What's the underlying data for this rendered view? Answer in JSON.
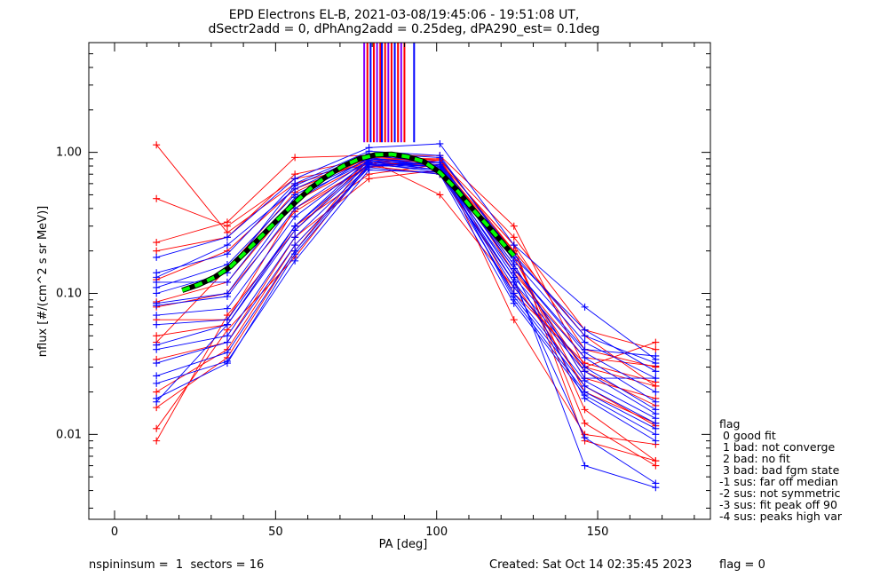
{
  "chart_data": {
    "type": "line",
    "title_line1": "EPD Electrons EL-B, 2021-03-08/19:45:06 - 19:51:08 UT,",
    "title_line2": "dSectr2add = 0, dPhAng2add = 0.25deg, dPA290_est=   0.1deg",
    "xlabel": "PA [deg]",
    "ylabel": "nflux [#/(cm^2 s sr MeV)]",
    "xlim": [
      -8,
      185
    ],
    "ylim": [
      0.0025,
      6.0
    ],
    "yscale": "log",
    "x_ticks": [
      0,
      50,
      100,
      150
    ],
    "x_tick_labels": [
      "0",
      "50",
      "100",
      "150"
    ],
    "y_ticks": [
      0.01,
      0.1,
      1.0
    ],
    "y_tick_labels": [
      "0.01",
      "0.10",
      "1.00"
    ],
    "pa_bins": [
      13,
      35,
      56,
      79,
      101,
      124,
      146,
      168
    ],
    "colors": {
      "red": "#ff0000",
      "blue": "#0000ff",
      "purple": "#8000ff",
      "green": "#00ff00",
      "black": "#000000"
    },
    "series": [
      {
        "color": "red",
        "values": [
          1.13,
          0.27,
          0.6,
          0.85,
          0.9,
          0.2,
          0.05,
          0.022
        ]
      },
      {
        "color": "red",
        "values": [
          0.47,
          0.3,
          0.65,
          0.82,
          0.85,
          0.22,
          0.04,
          0.03
        ]
      },
      {
        "color": "red",
        "values": [
          0.23,
          0.32,
          0.92,
          0.95,
          0.95,
          0.3,
          0.03,
          0.045
        ]
      },
      {
        "color": "red",
        "values": [
          0.2,
          0.25,
          0.7,
          0.9,
          0.88,
          0.25,
          0.055,
          0.04
        ]
      },
      {
        "color": "red",
        "values": [
          0.125,
          0.2,
          0.55,
          0.88,
          0.5,
          0.11,
          0.03,
          0.022
        ]
      },
      {
        "color": "red",
        "values": [
          0.087,
          0.12,
          0.45,
          0.85,
          0.8,
          0.16,
          0.025,
          0.018
        ]
      },
      {
        "color": "red",
        "values": [
          0.065,
          0.065,
          0.4,
          0.8,
          0.85,
          0.18,
          0.02,
          0.012
        ]
      },
      {
        "color": "red",
        "values": [
          0.05,
          0.06,
          0.3,
          0.7,
          0.82,
          0.2,
          0.015,
          0.0065
        ]
      },
      {
        "color": "red",
        "values": [
          0.034,
          0.045,
          0.25,
          0.65,
          0.75,
          0.2,
          0.012,
          0.006
        ]
      },
      {
        "color": "red",
        "values": [
          0.02,
          0.04,
          0.22,
          0.78,
          0.88,
          0.065,
          0.01,
          0.0085
        ]
      },
      {
        "color": "red",
        "values": [
          0.0155,
          0.035,
          0.2,
          0.9,
          0.9,
          0.1,
          0.032,
          0.0235
        ]
      },
      {
        "color": "red",
        "values": [
          0.011,
          0.055,
          0.18,
          0.85,
          0.8,
          0.15,
          0.028,
          0.016
        ]
      },
      {
        "color": "red",
        "values": [
          0.009,
          0.07,
          0.28,
          0.88,
          0.85,
          0.22,
          0.009,
          0.0065
        ]
      },
      {
        "color": "red",
        "values": [
          0.08,
          0.1,
          0.38,
          0.8,
          0.7,
          0.12,
          0.022,
          0.0115
        ]
      },
      {
        "color": "red",
        "values": [
          0.045,
          0.15,
          0.52,
          0.92,
          0.9,
          0.14,
          0.035,
          0.0305
        ]
      },
      {
        "color": "blue",
        "values": [
          0.18,
          0.25,
          0.65,
          1.08,
          1.15,
          0.22,
          0.08,
          0.034
        ]
      },
      {
        "color": "blue",
        "values": [
          0.14,
          0.19,
          0.6,
          1.02,
          0.95,
          0.18,
          0.055,
          0.028
        ]
      },
      {
        "color": "blue",
        "values": [
          0.13,
          0.22,
          0.55,
          0.95,
          0.85,
          0.17,
          0.045,
          0.025
        ]
      },
      {
        "color": "blue",
        "values": [
          0.11,
          0.16,
          0.5,
          0.9,
          0.8,
          0.15,
          0.038,
          0.02
        ]
      },
      {
        "color": "blue",
        "values": [
          0.085,
          0.1,
          0.45,
          0.92,
          0.8,
          0.13,
          0.035,
          0.017
        ]
      },
      {
        "color": "blue",
        "values": [
          0.082,
          0.095,
          0.4,
          0.88,
          0.78,
          0.12,
          0.03,
          0.015
        ]
      },
      {
        "color": "blue",
        "values": [
          0.07,
          0.078,
          0.35,
          0.86,
          0.75,
          0.11,
          0.028,
          0.014
        ]
      },
      {
        "color": "blue",
        "values": [
          0.06,
          0.065,
          0.3,
          0.84,
          0.72,
          0.1,
          0.024,
          0.013
        ]
      },
      {
        "color": "blue",
        "values": [
          0.043,
          0.06,
          0.28,
          0.83,
          0.8,
          0.095,
          0.022,
          0.012
        ]
      },
      {
        "color": "blue",
        "values": [
          0.04,
          0.05,
          0.25,
          0.8,
          0.85,
          0.09,
          0.02,
          0.011
        ]
      },
      {
        "color": "blue",
        "values": [
          0.032,
          0.045,
          0.22,
          0.78,
          0.7,
          0.085,
          0.019,
          0.01
        ]
      },
      {
        "color": "blue",
        "values": [
          0.026,
          0.038,
          0.2,
          0.82,
          0.75,
          0.14,
          0.018,
          0.009
        ]
      },
      {
        "color": "blue",
        "values": [
          0.023,
          0.033,
          0.17,
          0.75,
          0.72,
          0.12,
          0.0095,
          0.0045
        ]
      },
      {
        "color": "blue",
        "values": [
          0.018,
          0.032,
          0.19,
          0.8,
          0.8,
          0.13,
          0.006,
          0.0042
        ]
      },
      {
        "color": "blue",
        "values": [
          0.017,
          0.06,
          0.3,
          0.9,
          0.85,
          0.15,
          0.04,
          0.036
        ]
      },
      {
        "color": "blue",
        "values": [
          0.12,
          0.12,
          0.48,
          0.86,
          0.82,
          0.16,
          0.025,
          0.025
        ]
      },
      {
        "color": "blue",
        "values": [
          0.1,
          0.14,
          0.58,
          0.98,
          0.92,
          0.19,
          0.05,
          0.032
        ]
      }
    ],
    "fit_curve": {
      "color": "green",
      "x": [
        21,
        26,
        31,
        36,
        41,
        46,
        51,
        56,
        61,
        66,
        71,
        76,
        81,
        86,
        91,
        96,
        101,
        106,
        111,
        116,
        121,
        124
      ],
      "y": [
        0.105,
        0.115,
        0.13,
        0.155,
        0.2,
        0.26,
        0.34,
        0.44,
        0.56,
        0.68,
        0.8,
        0.9,
        0.96,
        0.97,
        0.93,
        0.86,
        0.72,
        0.55,
        0.4,
        0.3,
        0.22,
        0.185
      ]
    },
    "peak_markers": {
      "x": [
        77.5,
        78.5,
        79.5,
        80.5,
        81.5,
        82.5,
        83.0,
        84.0,
        85.0,
        86.0,
        87.0,
        88.0,
        89.0,
        90.0,
        93.0
      ],
      "colors": [
        "purple",
        "red",
        "blue",
        "red",
        "purple",
        "red",
        "blue",
        "red",
        "purple",
        "red",
        "blue",
        "red",
        "purple",
        "red",
        "blue"
      ],
      "y_bottom": 1.18,
      "y_top": 6.0
    }
  },
  "legend": {
    "title": "flag",
    "items": [
      " 0 good fit",
      " 1 bad: not converge",
      " 2 bad: no fit",
      " 3 bad: bad fgm state",
      "-1 sus: far off median",
      "-2 sus: not symmetric",
      "-3 sus: fit peak off 90",
      "-4 sus: peaks high var"
    ]
  },
  "footer": {
    "left": "nspininsum =  1  sectors = 16",
    "created": "Created: Sat Oct 14 02:35:45 2023",
    "flag": "flag = 0"
  }
}
